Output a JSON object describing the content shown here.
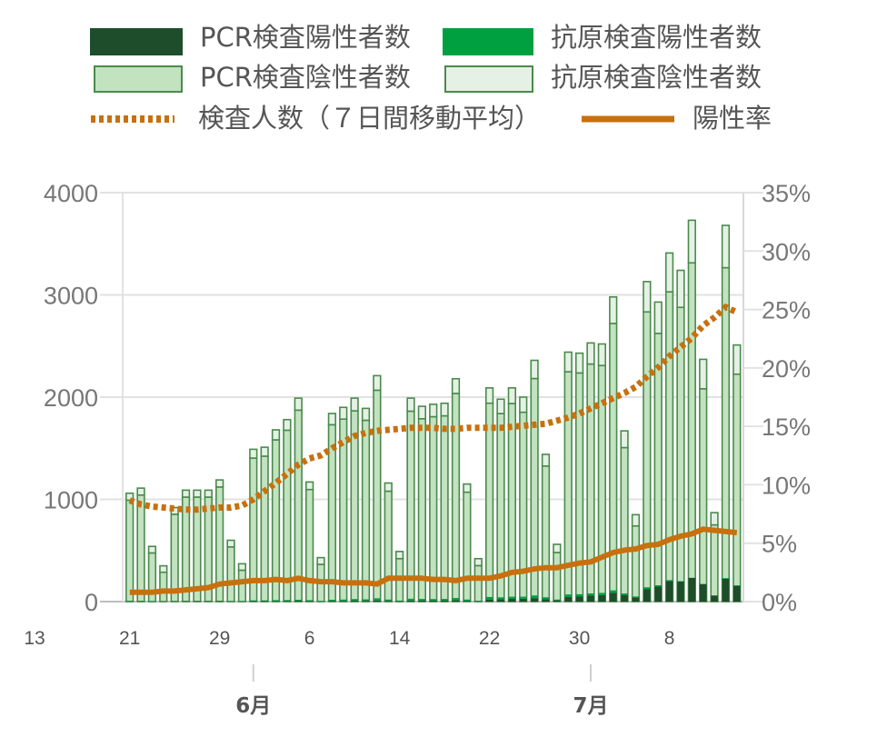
{
  "chart_data": {
    "type": "bar",
    "stacked": true,
    "legend": {
      "position": "top",
      "items": [
        {
          "key": "pcr_pos",
          "label": "PCR検査陽性者数",
          "fill": "#1e4d2b",
          "stroke": "#1e4d2b",
          "kind": "box"
        },
        {
          "key": "ag_pos",
          "label": "抗原検査陽性者数",
          "fill": "#00a040",
          "stroke": "#00a040",
          "kind": "box"
        },
        {
          "key": "pcr_neg",
          "label": "PCR検査陰性者数",
          "fill": "#c2e2c0",
          "stroke": "#4a8a4c",
          "kind": "box"
        },
        {
          "key": "ag_neg",
          "label": "抗原検査陰性者数",
          "fill": "#e4f1e4",
          "stroke": "#4a8a4c",
          "kind": "box"
        },
        {
          "key": "tests_ma",
          "label": "検査人数（７日間移動平均）",
          "color": "#c8700e",
          "kind": "dotted"
        },
        {
          "key": "pos_rate",
          "label": "陽性率",
          "color": "#c8700e",
          "kind": "line"
        }
      ]
    },
    "y_left": {
      "min": 0,
      "max": 4000,
      "ticks": [
        "0",
        "1000",
        "2000",
        "3000",
        "4000"
      ]
    },
    "y_right": {
      "min": 0,
      "max": 35,
      "ticks": [
        "0%",
        "5%",
        "10%",
        "15%",
        "20%",
        "25%",
        "30%",
        "35%"
      ]
    },
    "grid": true,
    "x_ticks": [
      {
        "label": "13",
        "index": -2,
        "faded": true
      },
      {
        "label": "21",
        "index": 0
      },
      {
        "label": "29",
        "index": 8
      },
      {
        "label": "6",
        "index": 16
      },
      {
        "label": "14",
        "index": 24
      },
      {
        "label": "22",
        "index": 32
      },
      {
        "label": "30",
        "index": 40
      },
      {
        "label": "8",
        "index": 48
      }
    ],
    "months": [
      {
        "label": "6月",
        "index": 11
      },
      {
        "label": "7月",
        "index": 41
      }
    ],
    "totals": [
      1060,
      1110,
      540,
      350,
      920,
      1090,
      1090,
      1090,
      1190,
      600,
      370,
      1490,
      1510,
      1680,
      1780,
      1990,
      1170,
      430,
      1840,
      1900,
      1990,
      1890,
      2210,
      1160,
      490,
      1990,
      1910,
      1930,
      1940,
      2180,
      1150,
      420,
      2090,
      1980,
      2090,
      2000,
      2360,
      1440,
      560,
      2440,
      2430,
      2530,
      2520,
      2980,
      1670,
      850,
      3130,
      2930,
      3410,
      3240,
      3730,
      2370,
      870,
      3680,
      2510
    ],
    "positives": [
      8,
      8,
      4,
      3,
      6,
      8,
      8,
      8,
      9,
      5,
      3,
      12,
      12,
      14,
      15,
      18,
      14,
      6,
      18,
      20,
      25,
      22,
      32,
      20,
      10,
      28,
      26,
      25,
      26,
      35,
      20,
      8,
      45,
      42,
      48,
      48,
      60,
      42,
      20,
      70,
      72,
      80,
      85,
      110,
      80,
      50,
      140,
      160,
      210,
      200,
      230,
      170,
      60,
      230,
      160
    ],
    "pos_pos": [
      12,
      15,
      18,
      20,
      21,
      23,
      25,
      27,
      30,
      33,
      35,
      37,
      39,
      40,
      42,
      44,
      40,
      36,
      35,
      34,
      33,
      32,
      34,
      36,
      37,
      36,
      35,
      34,
      35,
      36,
      37,
      38,
      45,
      52,
      56,
      58,
      57,
      58,
      62,
      64,
      68,
      72,
      75,
      79,
      81,
      83,
      88,
      92,
      96,
      98,
      101,
      101,
      99,
      97,
      96
    ],
    "positive_rate": [
      0.8,
      0.8,
      0.8,
      0.9,
      0.9,
      1.0,
      1.1,
      1.2,
      1.5,
      1.6,
      1.7,
      1.8,
      1.8,
      1.9,
      1.8,
      2.0,
      1.8,
      1.7,
      1.7,
      1.6,
      1.6,
      1.6,
      1.5,
      2.0,
      2.0,
      2.0,
      2.0,
      1.9,
      1.9,
      1.8,
      2.0,
      2.0,
      2.0,
      2.2,
      2.5,
      2.6,
      2.8,
      2.9,
      2.9,
      3.1,
      3.3,
      3.4,
      3.8,
      4.2,
      4.4,
      4.5,
      4.8,
      4.9,
      5.3,
      5.6,
      5.8,
      6.2,
      6.1,
      6.0,
      5.9
    ],
    "tests_moving_average": [
      990,
      950,
      930,
      920,
      910,
      900,
      900,
      910,
      920,
      920,
      940,
      1000,
      1080,
      1160,
      1250,
      1340,
      1400,
      1430,
      1500,
      1560,
      1620,
      1650,
      1670,
      1680,
      1690,
      1700,
      1700,
      1700,
      1690,
      1690,
      1700,
      1700,
      1700,
      1700,
      1710,
      1720,
      1730,
      1740,
      1770,
      1800,
      1840,
      1890,
      1940,
      1990,
      2040,
      2100,
      2200,
      2290,
      2400,
      2490,
      2580,
      2700,
      2780,
      2880,
      2830
    ]
  }
}
